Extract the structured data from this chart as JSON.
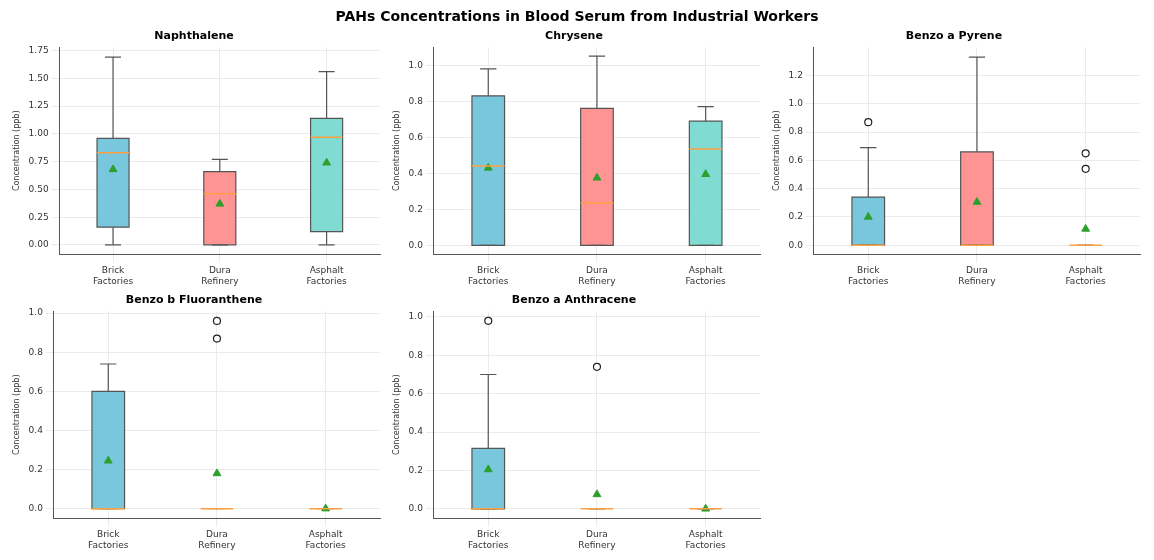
{
  "chart_data": [
    {
      "type": "box",
      "title": "Naphthalene",
      "ylabel": "Concentration (ppb)",
      "annotations": [
        "PAHs Concentrations in Blood Serum from Industrial Workers"
      ],
      "categories": [
        "Brick Factories",
        "Dura Refinery",
        "Asphalt Factories"
      ],
      "colors": [
        "#78c7dc",
        "#ff9494",
        "#80dcd3"
      ],
      "boxes": [
        {
          "low": 0,
          "q1": 0.16,
          "median": 0.83,
          "q3": 0.96,
          "high": 1.69,
          "mean": 0.68
        },
        {
          "low": 0,
          "q1": 0,
          "median": 0.46,
          "q3": 0.66,
          "high": 0.77,
          "mean": 0.37
        },
        {
          "low": 0,
          "q1": 0.12,
          "median": 0.97,
          "q3": 1.14,
          "high": 1.56,
          "mean": 0.74
        }
      ],
      "ylim": [
        -0.085,
        1.78
      ],
      "yticks": [
        {
          "value": 0,
          "label": "0.00"
        },
        {
          "value": 0.25,
          "label": "0.25"
        },
        {
          "value": 0.5,
          "label": "0.50"
        },
        {
          "value": 0.75,
          "label": "0.75"
        },
        {
          "value": 1,
          "label": "1.00"
        },
        {
          "value": 1.25,
          "label": "1.25"
        },
        {
          "value": 1.5,
          "label": "1.50"
        },
        {
          "value": 1.75,
          "label": "1.75"
        }
      ],
      "grid": true,
      "legend": false,
      "marker": "triangle"
    },
    {
      "type": "box",
      "title": "Chrysene",
      "ylabel": "Concentration (ppb)",
      "categories": [
        "Brick Factories",
        "Dura Refinery",
        "Asphalt Factories"
      ],
      "colors": [
        "#78c7dc",
        "#ff9494",
        "#80dcd3"
      ],
      "boxes": [
        {
          "low": 0,
          "q1": 0,
          "median": 0.44,
          "q3": 0.83,
          "high": 0.98,
          "mean": 0.43
        },
        {
          "low": 0,
          "q1": 0,
          "median": 0.235,
          "q3": 0.76,
          "high": 1.05,
          "mean": 0.375
        },
        {
          "low": 0,
          "q1": 0,
          "median": 0.535,
          "q3": 0.69,
          "high": 0.77,
          "mean": 0.395
        }
      ],
      "ylim": [
        -0.05,
        1.1
      ],
      "yticks": [
        {
          "value": 0,
          "label": "0.0"
        },
        {
          "value": 0.2,
          "label": "0.2"
        },
        {
          "value": 0.4,
          "label": "0.4"
        },
        {
          "value": 0.6,
          "label": "0.6"
        },
        {
          "value": 0.8,
          "label": "0.8"
        },
        {
          "value": 1,
          "label": "1.0"
        }
      ],
      "grid": true,
      "legend": false,
      "marker": "triangle"
    },
    {
      "type": "box",
      "title": "Benzo a Pyrene",
      "ylabel": "Concentration (ppb)",
      "categories": [
        "Brick Factories",
        "Dura Refinery",
        "Asphalt Factories"
      ],
      "colors": [
        "#78c7dc",
        "#ff9494",
        null
      ],
      "boxes": [
        {
          "low": 0,
          "q1": 0,
          "median": 0,
          "q3": 0.34,
          "high": 0.69,
          "mean": 0.2,
          "outliers": [
            0.87
          ]
        },
        {
          "low": 0,
          "q1": 0,
          "median": 0,
          "q3": 0.66,
          "high": 1.33,
          "mean": 0.305
        },
        {
          "low": 0,
          "q1": 0,
          "median": 0,
          "q3": 0,
          "high": 0,
          "mean": 0.115,
          "outliers": [
            0.54,
            0.65
          ]
        }
      ],
      "ylim": [
        -0.065,
        1.4
      ],
      "yticks": [
        {
          "value": 0,
          "label": "0.0"
        },
        {
          "value": 0.2,
          "label": "0.2"
        },
        {
          "value": 0.4,
          "label": "0.4"
        },
        {
          "value": 0.6,
          "label": "0.6"
        },
        {
          "value": 0.8,
          "label": "0.8"
        },
        {
          "value": 1,
          "label": "1.0"
        },
        {
          "value": 1.2,
          "label": "1.2"
        }
      ],
      "grid": true,
      "legend": false,
      "marker": "triangle"
    },
    {
      "type": "box",
      "title": "Benzo b Fluoranthene",
      "ylabel": "Concentration (ppb)",
      "categories": [
        "Brick Factories",
        "Dura Refinery",
        "Asphalt Factories"
      ],
      "colors": [
        "#78c7dc",
        null,
        null
      ],
      "boxes": [
        {
          "low": 0,
          "q1": 0,
          "median": 0,
          "q3": 0.6,
          "high": 0.74,
          "mean": 0.245
        },
        {
          "low": 0,
          "q1": 0,
          "median": 0,
          "q3": 0,
          "high": 0,
          "mean": 0.18,
          "outliers": [
            0.87,
            0.96
          ]
        },
        {
          "low": 0,
          "q1": 0,
          "median": 0,
          "q3": 0,
          "high": 0,
          "mean": 0
        }
      ],
      "ylim": [
        -0.05,
        1.01
      ],
      "yticks": [
        {
          "value": 0,
          "label": "0.0"
        },
        {
          "value": 0.2,
          "label": "0.2"
        },
        {
          "value": 0.4,
          "label": "0.4"
        },
        {
          "value": 0.6,
          "label": "0.6"
        },
        {
          "value": 0.8,
          "label": "0.8"
        },
        {
          "value": 1,
          "label": "1.0"
        }
      ],
      "grid": true,
      "legend": false,
      "marker": "triangle"
    },
    {
      "type": "box",
      "title": "Benzo a Anthracene",
      "ylabel": "Concentration (ppb)",
      "categories": [
        "Brick Factories",
        "Dura Refinery",
        "Asphalt Factories"
      ],
      "colors": [
        "#78c7dc",
        null,
        null
      ],
      "boxes": [
        {
          "low": 0,
          "q1": 0,
          "median": 0,
          "q3": 0.315,
          "high": 0.7,
          "mean": 0.205,
          "outliers": [
            0.98
          ]
        },
        {
          "low": 0,
          "q1": 0,
          "median": 0,
          "q3": 0,
          "high": 0,
          "mean": 0.075,
          "outliers": [
            0.74
          ]
        },
        {
          "low": 0,
          "q1": 0,
          "median": 0,
          "q3": 0,
          "high": 0,
          "mean": 0
        }
      ],
      "ylim": [
        -0.05,
        1.03
      ],
      "yticks": [
        {
          "value": 0,
          "label": "0.0"
        },
        {
          "value": 0.2,
          "label": "0.2"
        },
        {
          "value": 0.4,
          "label": "0.4"
        },
        {
          "value": 0.6,
          "label": "0.6"
        },
        {
          "value": 0.8,
          "label": "0.8"
        },
        {
          "value": 1,
          "label": "1.0"
        }
      ],
      "grid": true,
      "legend": false,
      "marker": "triangle"
    }
  ]
}
